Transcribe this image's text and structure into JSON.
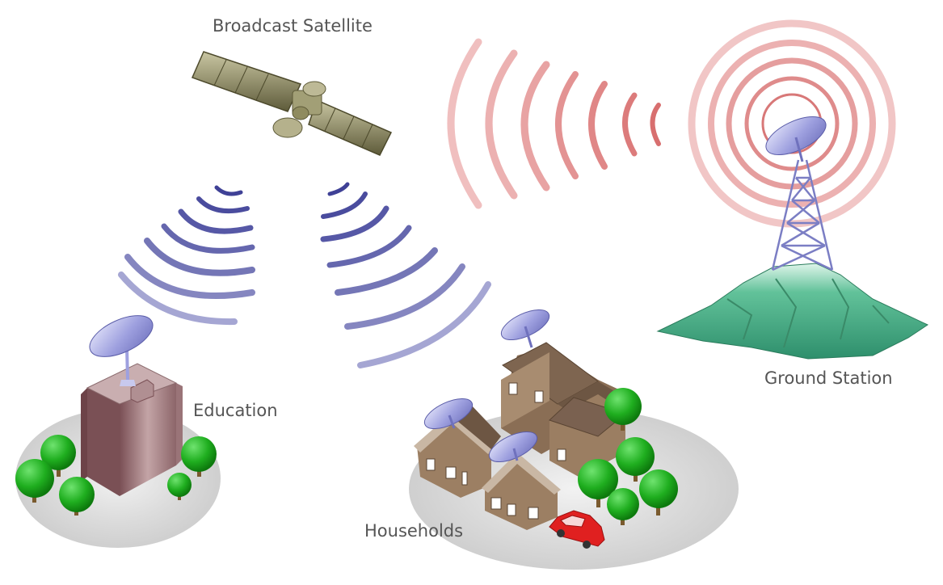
{
  "labels": {
    "satellite": "Broadcast Satellite",
    "education": "Education",
    "households": "Households",
    "ground_station": "Ground Station"
  },
  "colors": {
    "downlink_wave": "#5b5ea6",
    "uplink_wave": "#e38c8c",
    "dish": "#8f91d6",
    "house": "#9a8168",
    "roof": "#7e6550",
    "mountain": "#2f9a72",
    "tree": "#1fae1f",
    "car": "#e02020",
    "building": "#9a6f72",
    "ground_disc": "#d4d4d4",
    "satellite_body": "#8f8b5f",
    "label_text": "#555555"
  }
}
